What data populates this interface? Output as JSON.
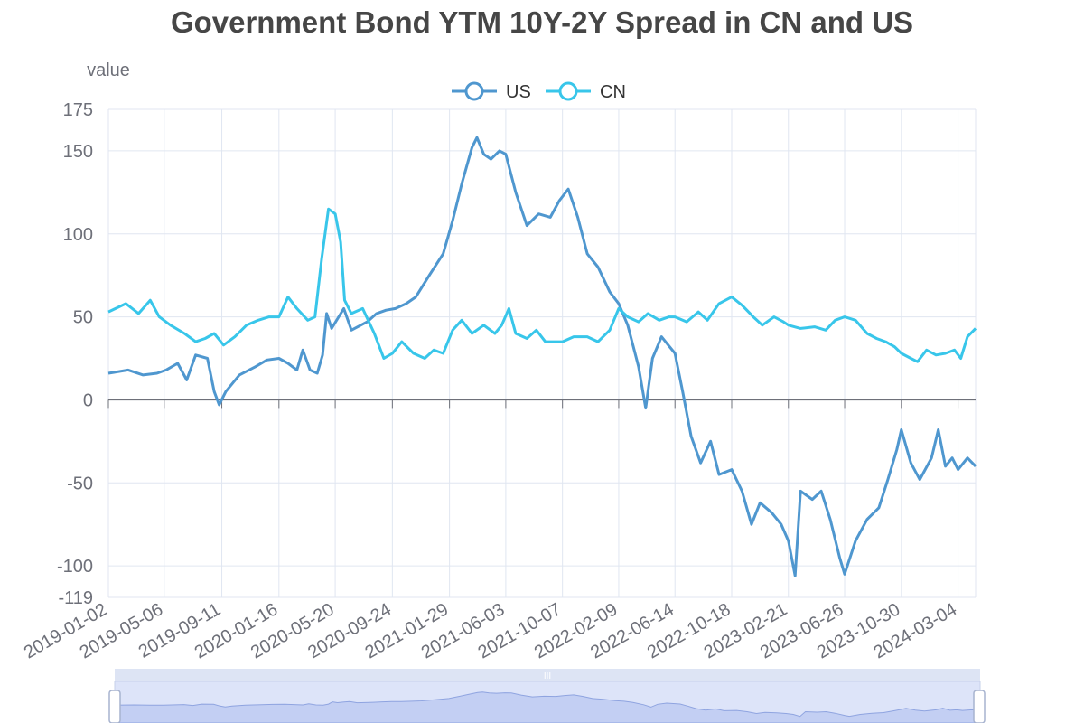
{
  "chart_data": {
    "type": "line",
    "title": "Government Bond YTM 10Y-2Y Spread in CN and US",
    "ylabel": "value",
    "xlabel": "",
    "ylim": [
      -119,
      175
    ],
    "yticks": [
      175,
      150,
      100,
      50,
      0,
      -50,
      -100,
      -119
    ],
    "x_tick_labels": [
      "2019-01-02",
      "2019-05-06",
      "2019-09-11",
      "2020-01-16",
      "2020-05-20",
      "2020-09-24",
      "2021-01-29",
      "2021-06-03",
      "2021-10-07",
      "2022-02-09",
      "2022-06-14",
      "2022-10-18",
      "2023-02-21",
      "2023-06-26",
      "2023-10-30",
      "2024-03-04"
    ],
    "xlim": [
      "2019-01-02",
      "2024-04-12"
    ],
    "grid": true,
    "legend_position": "top-center",
    "colors": {
      "US": "#5470c6",
      "CN": "#3ba9d9"
    },
    "series": [
      {
        "name": "US",
        "color": "#4f97cf",
        "points": [
          [
            "2019-01-02",
            16
          ],
          [
            "2019-02-15",
            18
          ],
          [
            "2019-03-20",
            15
          ],
          [
            "2019-04-20",
            16
          ],
          [
            "2019-05-10",
            18
          ],
          [
            "2019-06-05",
            22
          ],
          [
            "2019-06-25",
            12
          ],
          [
            "2019-07-15",
            27
          ],
          [
            "2019-08-10",
            25
          ],
          [
            "2019-08-25",
            5
          ],
          [
            "2019-09-05",
            -3
          ],
          [
            "2019-09-20",
            5
          ],
          [
            "2019-10-20",
            15
          ],
          [
            "2019-11-25",
            20
          ],
          [
            "2019-12-20",
            24
          ],
          [
            "2020-01-16",
            25
          ],
          [
            "2020-02-05",
            22
          ],
          [
            "2020-02-25",
            18
          ],
          [
            "2020-03-09",
            30
          ],
          [
            "2020-03-25",
            18
          ],
          [
            "2020-04-10",
            16
          ],
          [
            "2020-04-22",
            27
          ],
          [
            "2020-05-01",
            52
          ],
          [
            "2020-05-12",
            43
          ],
          [
            "2020-06-08",
            55
          ],
          [
            "2020-06-25",
            42
          ],
          [
            "2020-07-30",
            47
          ],
          [
            "2020-08-20",
            52
          ],
          [
            "2020-09-10",
            54
          ],
          [
            "2020-10-01",
            55
          ],
          [
            "2020-10-25",
            58
          ],
          [
            "2020-11-15",
            62
          ],
          [
            "2020-12-15",
            75
          ],
          [
            "2021-01-15",
            88
          ],
          [
            "2021-02-05",
            108
          ],
          [
            "2021-02-25",
            130
          ],
          [
            "2021-03-20",
            152
          ],
          [
            "2021-03-31",
            158
          ],
          [
            "2021-04-15",
            148
          ],
          [
            "2021-05-01",
            145
          ],
          [
            "2021-05-20",
            150
          ],
          [
            "2021-06-03",
            148
          ],
          [
            "2021-06-25",
            125
          ],
          [
            "2021-07-20",
            105
          ],
          [
            "2021-08-15",
            112
          ],
          [
            "2021-09-10",
            110
          ],
          [
            "2021-09-30",
            120
          ],
          [
            "2021-10-20",
            127
          ],
          [
            "2021-11-10",
            110
          ],
          [
            "2021-12-01",
            88
          ],
          [
            "2021-12-25",
            80
          ],
          [
            "2022-01-20",
            65
          ],
          [
            "2022-02-09",
            58
          ],
          [
            "2022-03-01",
            45
          ],
          [
            "2022-03-25",
            20
          ],
          [
            "2022-04-10",
            -5
          ],
          [
            "2022-04-25",
            25
          ],
          [
            "2022-05-15",
            38
          ],
          [
            "2022-06-14",
            28
          ],
          [
            "2022-07-01",
            5
          ],
          [
            "2022-07-20",
            -22
          ],
          [
            "2022-08-10",
            -38
          ],
          [
            "2022-09-01",
            -25
          ],
          [
            "2022-09-20",
            -45
          ],
          [
            "2022-10-18",
            -42
          ],
          [
            "2022-11-10",
            -55
          ],
          [
            "2022-12-01",
            -75
          ],
          [
            "2022-12-20",
            -62
          ],
          [
            "2023-01-15",
            -68
          ],
          [
            "2023-02-05",
            -75
          ],
          [
            "2023-02-21",
            -85
          ],
          [
            "2023-03-08",
            -106
          ],
          [
            "2023-03-20",
            -55
          ],
          [
            "2023-04-15",
            -60
          ],
          [
            "2023-05-05",
            -55
          ],
          [
            "2023-05-25",
            -72
          ],
          [
            "2023-06-15",
            -95
          ],
          [
            "2023-06-26",
            -105
          ],
          [
            "2023-07-20",
            -85
          ],
          [
            "2023-08-15",
            -72
          ],
          [
            "2023-09-10",
            -65
          ],
          [
            "2023-09-30",
            -48
          ],
          [
            "2023-10-20",
            -30
          ],
          [
            "2023-10-30",
            -18
          ],
          [
            "2023-11-20",
            -38
          ],
          [
            "2023-12-10",
            -48
          ],
          [
            "2024-01-05",
            -35
          ],
          [
            "2024-01-20",
            -18
          ],
          [
            "2024-02-05",
            -40
          ],
          [
            "2024-02-20",
            -35
          ],
          [
            "2024-03-04",
            -42
          ],
          [
            "2024-03-25",
            -35
          ],
          [
            "2024-04-12",
            -40
          ]
        ]
      },
      {
        "name": "CN",
        "color": "#38c6ea",
        "points": [
          [
            "2019-01-02",
            53
          ],
          [
            "2019-02-10",
            58
          ],
          [
            "2019-03-10",
            52
          ],
          [
            "2019-04-05",
            60
          ],
          [
            "2019-04-25",
            50
          ],
          [
            "2019-05-20",
            45
          ],
          [
            "2019-06-20",
            40
          ],
          [
            "2019-07-15",
            35
          ],
          [
            "2019-08-05",
            37
          ],
          [
            "2019-08-25",
            40
          ],
          [
            "2019-09-15",
            33
          ],
          [
            "2019-10-10",
            38
          ],
          [
            "2019-11-05",
            45
          ],
          [
            "2019-12-01",
            48
          ],
          [
            "2019-12-25",
            50
          ],
          [
            "2020-01-16",
            50
          ],
          [
            "2020-02-05",
            62
          ],
          [
            "2020-02-25",
            55
          ],
          [
            "2020-03-20",
            48
          ],
          [
            "2020-04-05",
            50
          ],
          [
            "2020-04-20",
            85
          ],
          [
            "2020-05-05",
            115
          ],
          [
            "2020-05-20",
            112
          ],
          [
            "2020-06-01",
            95
          ],
          [
            "2020-06-10",
            60
          ],
          [
            "2020-06-25",
            52
          ],
          [
            "2020-07-20",
            55
          ],
          [
            "2020-08-15",
            40
          ],
          [
            "2020-09-05",
            25
          ],
          [
            "2020-09-24",
            28
          ],
          [
            "2020-10-15",
            35
          ],
          [
            "2020-11-10",
            28
          ],
          [
            "2020-12-05",
            25
          ],
          [
            "2020-12-25",
            30
          ],
          [
            "2021-01-15",
            28
          ],
          [
            "2021-02-05",
            42
          ],
          [
            "2021-02-25",
            48
          ],
          [
            "2021-03-20",
            40
          ],
          [
            "2021-04-15",
            45
          ],
          [
            "2021-05-10",
            40
          ],
          [
            "2021-05-25",
            45
          ],
          [
            "2021-06-10",
            55
          ],
          [
            "2021-06-25",
            40
          ],
          [
            "2021-07-20",
            37
          ],
          [
            "2021-08-10",
            42
          ],
          [
            "2021-08-30",
            35
          ],
          [
            "2021-10-07",
            35
          ],
          [
            "2021-11-01",
            38
          ],
          [
            "2021-12-01",
            38
          ],
          [
            "2021-12-25",
            35
          ],
          [
            "2022-01-20",
            42
          ],
          [
            "2022-02-09",
            55
          ],
          [
            "2022-03-01",
            50
          ],
          [
            "2022-03-25",
            47
          ],
          [
            "2022-04-15",
            52
          ],
          [
            "2022-05-10",
            48
          ],
          [
            "2022-06-01",
            50
          ],
          [
            "2022-06-14",
            50
          ],
          [
            "2022-07-10",
            47
          ],
          [
            "2022-08-05",
            53
          ],
          [
            "2022-08-25",
            48
          ],
          [
            "2022-09-20",
            58
          ],
          [
            "2022-10-18",
            62
          ],
          [
            "2022-11-10",
            57
          ],
          [
            "2022-12-05",
            50
          ],
          [
            "2022-12-25",
            45
          ],
          [
            "2023-01-20",
            50
          ],
          [
            "2023-02-10",
            47
          ],
          [
            "2023-02-21",
            45
          ],
          [
            "2023-03-20",
            43
          ],
          [
            "2023-04-20",
            44
          ],
          [
            "2023-05-15",
            42
          ],
          [
            "2023-06-05",
            48
          ],
          [
            "2023-06-26",
            50
          ],
          [
            "2023-07-20",
            48
          ],
          [
            "2023-08-15",
            40
          ],
          [
            "2023-09-05",
            37
          ],
          [
            "2023-09-25",
            35
          ],
          [
            "2023-10-15",
            32
          ],
          [
            "2023-10-30",
            28
          ],
          [
            "2023-11-20",
            25
          ],
          [
            "2023-12-05",
            23
          ],
          [
            "2023-12-25",
            30
          ],
          [
            "2024-01-15",
            27
          ],
          [
            "2024-02-05",
            28
          ],
          [
            "2024-02-25",
            30
          ],
          [
            "2024-03-10",
            25
          ],
          [
            "2024-03-25",
            38
          ],
          [
            "2024-04-12",
            43
          ]
        ]
      }
    ]
  },
  "datazoom": {
    "handle_glyph": "III"
  }
}
